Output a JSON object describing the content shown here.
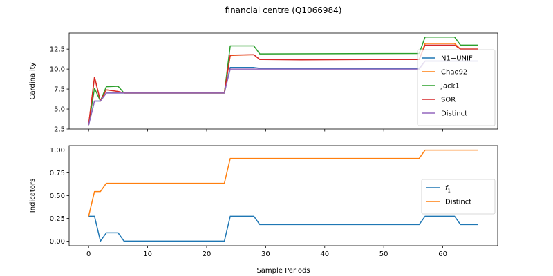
{
  "figure": {
    "title": "financial centre (Q1066984)",
    "xlabel": "Sample Periods"
  },
  "chart_data": [
    {
      "type": "line",
      "panel": "top",
      "ylabel": "Cardinality",
      "xlim": [
        -3.3,
        69.3
      ],
      "ylim": [
        2.5,
        14.5
      ],
      "xticks": [
        0,
        10,
        20,
        30,
        40,
        50,
        60
      ],
      "yticks": [
        2.5,
        5.0,
        7.5,
        10.0,
        12.5
      ],
      "ytick_labels": [
        "2.5",
        "5.0",
        "7.5",
        "10.0",
        "12.5"
      ],
      "grid": false,
      "legend_position": "center-right",
      "series": [
        {
          "name": "N1−UNIF",
          "color": "#1f77b4",
          "points": [
            [
              0,
              3.0
            ],
            [
              1,
              6.0
            ],
            [
              2,
              6.0
            ],
            [
              3,
              7.0
            ],
            [
              5,
              7.0
            ],
            [
              6,
              7.0
            ],
            [
              23,
              7.0
            ],
            [
              24,
              10.2
            ],
            [
              28,
              10.2
            ],
            [
              29,
              10.1
            ],
            [
              56,
              10.1
            ],
            [
              57,
              11.0
            ],
            [
              62,
              11.0
            ],
            [
              63,
              11.0
            ],
            [
              66,
              11.0
            ]
          ]
        },
        {
          "name": "Chao92",
          "color": "#ff7f0e",
          "points": [
            [
              0,
              3.0
            ],
            [
              1,
              9.0
            ],
            [
              2,
              6.0
            ],
            [
              3,
              7.4
            ],
            [
              5,
              7.2
            ],
            [
              6,
              7.0
            ],
            [
              23,
              7.0
            ],
            [
              24,
              11.7
            ],
            [
              28,
              11.8
            ],
            [
              29,
              11.2
            ],
            [
              56,
              11.2
            ],
            [
              57,
              13.2
            ],
            [
              62,
              13.2
            ],
            [
              63,
              12.5
            ],
            [
              66,
              12.5
            ]
          ]
        },
        {
          "name": "Jack1",
          "color": "#2ca02c",
          "points": [
            [
              0,
              3.0
            ],
            [
              1,
              7.6
            ],
            [
              2,
              6.0
            ],
            [
              3,
              7.8
            ],
            [
              5,
              7.85
            ],
            [
              6,
              7.0
            ],
            [
              23,
              7.0
            ],
            [
              24,
              12.9
            ],
            [
              28,
              12.9
            ],
            [
              29,
              11.9
            ],
            [
              56,
              11.95
            ],
            [
              57,
              14.0
            ],
            [
              62,
              14.0
            ],
            [
              63,
              13.0
            ],
            [
              66,
              13.0
            ]
          ]
        },
        {
          "name": "SOR",
          "color": "#d62728",
          "points": [
            [
              0,
              3.0
            ],
            [
              1,
              9.0
            ],
            [
              2,
              6.0
            ],
            [
              3,
              7.4
            ],
            [
              5,
              7.2
            ],
            [
              6,
              7.0
            ],
            [
              23,
              7.0
            ],
            [
              24,
              11.75
            ],
            [
              28,
              11.8
            ],
            [
              29,
              11.2
            ],
            [
              36,
              11.15
            ],
            [
              48,
              11.2
            ],
            [
              56,
              11.2
            ],
            [
              57,
              13.0
            ],
            [
              62,
              13.0
            ],
            [
              63,
              12.5
            ],
            [
              66,
              12.5
            ]
          ]
        },
        {
          "name": "Distinct",
          "color": "#9467bd",
          "points": [
            [
              0,
              3.0
            ],
            [
              1,
              6.0
            ],
            [
              2,
              6.0
            ],
            [
              3,
              7.0
            ],
            [
              23,
              7.0
            ],
            [
              24,
              10.0
            ],
            [
              56,
              10.0
            ],
            [
              57,
              11.0
            ],
            [
              66,
              11.0
            ]
          ]
        }
      ]
    },
    {
      "type": "line",
      "panel": "bottom",
      "ylabel": "Indicators",
      "xlim": [
        -3.3,
        69.3
      ],
      "ylim": [
        -0.05,
        1.05
      ],
      "xticks": [
        0,
        10,
        20,
        30,
        40,
        50,
        60
      ],
      "xtick_labels": [
        "0",
        "10",
        "20",
        "30",
        "40",
        "50",
        "60"
      ],
      "yticks": [
        0.0,
        0.25,
        0.5,
        0.75,
        1.0
      ],
      "ytick_labels": [
        "0.00",
        "0.25",
        "0.50",
        "0.75",
        "1.00"
      ],
      "grid": false,
      "legend_position": "center-right",
      "series": [
        {
          "name": "f",
          "name_subscript": "1",
          "color": "#1f77b4",
          "points": [
            [
              0,
              0.273
            ],
            [
              1,
              0.273
            ],
            [
              2,
              0.0
            ],
            [
              3,
              0.091
            ],
            [
              5,
              0.091
            ],
            [
              6,
              0.0
            ],
            [
              23,
              0.0
            ],
            [
              24,
              0.273
            ],
            [
              28,
              0.273
            ],
            [
              29,
              0.182
            ],
            [
              56,
              0.182
            ],
            [
              57,
              0.273
            ],
            [
              62,
              0.273
            ],
            [
              63,
              0.182
            ],
            [
              66,
              0.182
            ]
          ]
        },
        {
          "name": "Distinct",
          "color": "#ff7f0e",
          "points": [
            [
              0,
              0.273
            ],
            [
              1,
              0.545
            ],
            [
              2,
              0.545
            ],
            [
              3,
              0.636
            ],
            [
              23,
              0.636
            ],
            [
              24,
              0.909
            ],
            [
              56,
              0.909
            ],
            [
              57,
              1.0
            ],
            [
              66,
              1.0
            ]
          ]
        }
      ]
    }
  ]
}
